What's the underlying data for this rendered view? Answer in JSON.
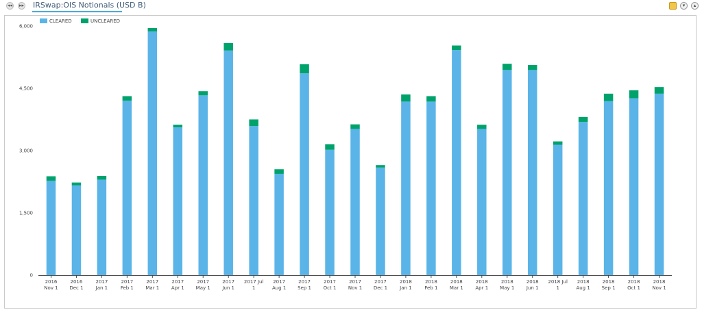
{
  "header": {
    "title": "IRSwap:OIS Notionals (USD B)",
    "nav_prev_glyph": "◂◂",
    "nav_next_glyph": "▸▸",
    "icons": [
      "folder-star-icon",
      "collapse-icon",
      "expand-icon"
    ]
  },
  "colors": {
    "cleared": "#5ab4e8",
    "uncleared": "#00a26b",
    "axis": "#444444"
  },
  "chart_data": {
    "type": "bar",
    "stacked": true,
    "grid": false,
    "legend_position": "top-left",
    "ylim": [
      0,
      6000
    ],
    "yticks": [
      "0",
      "1,500",
      "3,000",
      "4,500",
      "6,000"
    ],
    "ytick_values": [
      0,
      1500,
      3000,
      4500,
      6000
    ],
    "categories": [
      [
        "2016",
        "Nov 1"
      ],
      [
        "2016",
        "Dec 1"
      ],
      [
        "2017",
        "Jan 1"
      ],
      [
        "2017",
        "Feb 1"
      ],
      [
        "2017",
        "Mar 1"
      ],
      [
        "2017",
        "Apr 1"
      ],
      [
        "2017",
        "May 1"
      ],
      [
        "2017",
        "Jun 1"
      ],
      [
        "2017 Jul",
        "1"
      ],
      [
        "2017",
        "Aug 1"
      ],
      [
        "2017",
        "Sep 1"
      ],
      [
        "2017",
        "Oct 1"
      ],
      [
        "2017",
        "Nov 1"
      ],
      [
        "2017",
        "Dec 1"
      ],
      [
        "2018",
        "Jan 1"
      ],
      [
        "2018",
        "Feb 1"
      ],
      [
        "2018",
        "Mar 1"
      ],
      [
        "2018",
        "Apr 1"
      ],
      [
        "2018",
        "May 1"
      ],
      [
        "2018",
        "Jun 1"
      ],
      [
        "2018 Jul",
        "1"
      ],
      [
        "2018",
        "Aug 1"
      ],
      [
        "2018",
        "Sep 1"
      ],
      [
        "2018",
        "Oct 1"
      ],
      [
        "2018",
        "Nov 1"
      ]
    ],
    "series": [
      {
        "name": "CLEARED",
        "values": [
          2270,
          2160,
          2300,
          4200,
          5870,
          3560,
          4330,
          5410,
          3590,
          2440,
          4860,
          3020,
          3520,
          2590,
          4180,
          4180,
          5420,
          3520,
          4940,
          4940,
          3140,
          3690,
          4190,
          4260,
          4370
        ]
      },
      {
        "name": "UNCLEARED",
        "values": [
          110,
          70,
          90,
          110,
          80,
          60,
          100,
          180,
          160,
          110,
          220,
          130,
          110,
          60,
          170,
          130,
          110,
          100,
          150,
          120,
          80,
          120,
          180,
          190,
          160
        ]
      }
    ]
  }
}
